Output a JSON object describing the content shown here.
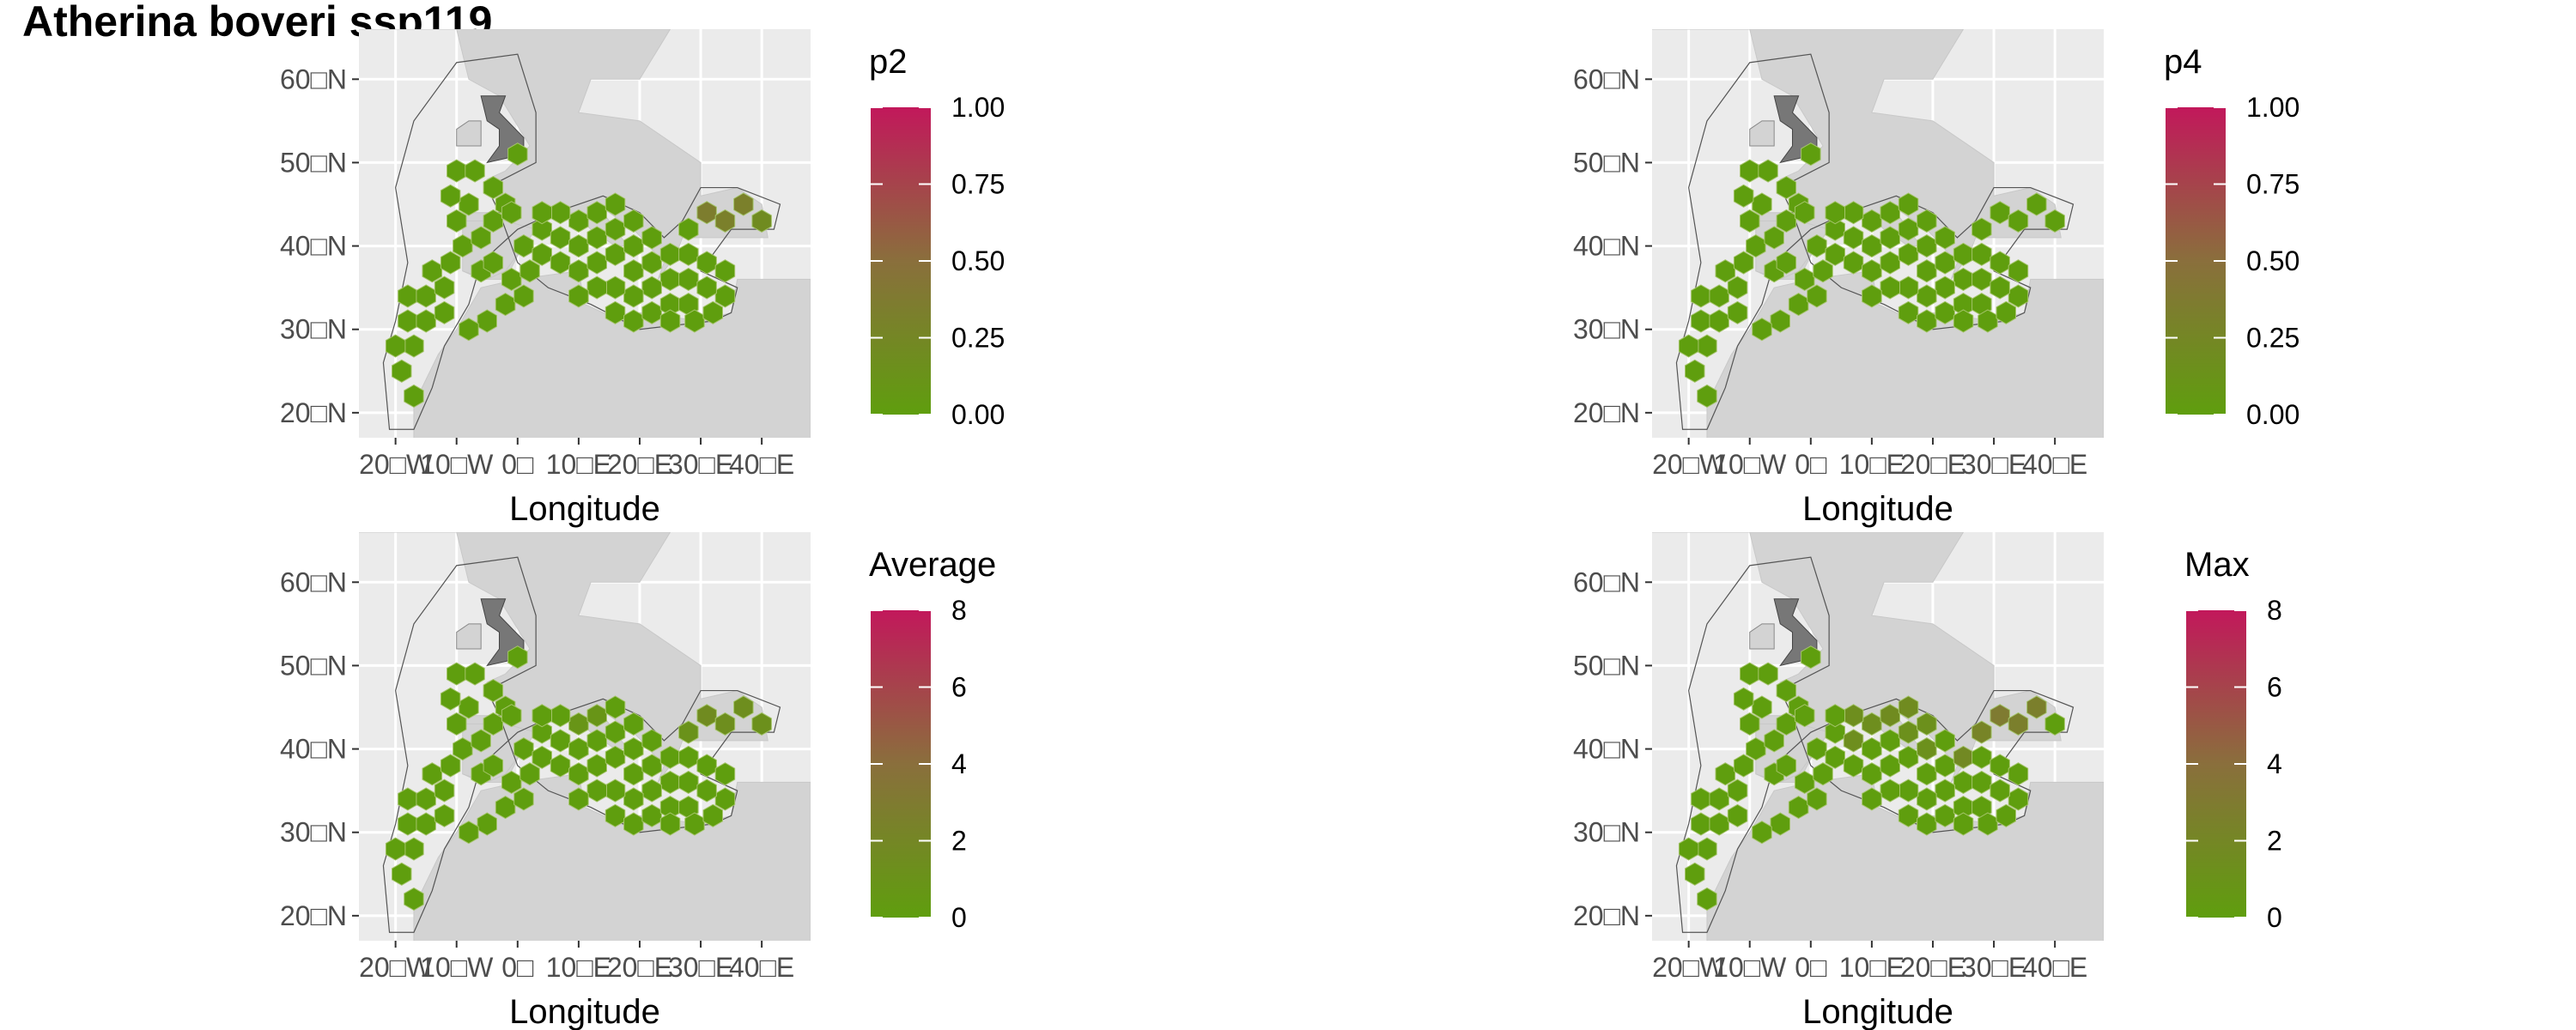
{
  "title": "Atherina boveri ssp119",
  "colors": {
    "low": "#5f9e0e",
    "mid": "#8a6f3c",
    "high": "#c2185b",
    "panel_bg": "#ebebeb",
    "land": "#d3d3d3",
    "grid": "#ffffff"
  },
  "map_axes": {
    "xlabel": "Longitude",
    "ylabel": "",
    "lat_ticks": [
      {
        "value": 60,
        "label": "60□N"
      },
      {
        "value": 50,
        "label": "50□N"
      },
      {
        "value": 40,
        "label": "40□N"
      },
      {
        "value": 30,
        "label": "30□N"
      },
      {
        "value": 20,
        "label": "20□N"
      }
    ],
    "lon_ticks": [
      {
        "value": -20,
        "label": "20□W"
      },
      {
        "value": -10,
        "label": "10□W"
      },
      {
        "value": 0,
        "label": "0□"
      },
      {
        "value": 10,
        "label": "10□E"
      },
      {
        "value": 20,
        "label": "20□E"
      },
      {
        "value": 30,
        "label": "30□E"
      },
      {
        "value": 40,
        "label": "40□E"
      }
    ],
    "xlim": [
      -26,
      48
    ],
    "ylim": [
      17,
      66
    ]
  },
  "chart_data": [
    {
      "type": "heatmap",
      "legend_title": "p2",
      "legend_ticks": [
        "1.00",
        "0.75",
        "0.50",
        "0.25",
        "0.00"
      ],
      "range": [
        0,
        1
      ],
      "hotspots": [
        {
          "lon": 31,
          "lat": 45,
          "value": 0.35
        },
        {
          "lon": 35,
          "lat": 45,
          "value": 0.32
        },
        {
          "lon": 42,
          "lat": 43,
          "value": 0.2
        }
      ]
    },
    {
      "type": "heatmap",
      "legend_title": "p4",
      "legend_ticks": [
        "1.00",
        "0.75",
        "0.50",
        "0.25",
        "0.00"
      ],
      "range": [
        0,
        1
      ],
      "hotspots": []
    },
    {
      "type": "heatmap",
      "legend_title": "Average",
      "legend_ticks": [
        "8",
        "6",
        "4",
        "2",
        "0"
      ],
      "range": [
        0,
        8
      ],
      "hotspots": [
        {
          "lon": 31,
          "lat": 45,
          "value": 1.6
        },
        {
          "lon": 35,
          "lat": 45,
          "value": 1.4
        },
        {
          "lon": 42,
          "lat": 43,
          "value": 1.2
        },
        {
          "lon": 28,
          "lat": 43,
          "value": 1.0
        },
        {
          "lon": 12,
          "lat": 45,
          "value": 0.8
        }
      ]
    },
    {
      "type": "heatmap",
      "legend_title": "Max",
      "legend_ticks": [
        "8",
        "6",
        "4",
        "2",
        "0"
      ],
      "range": [
        0,
        8
      ],
      "hotspots": [
        {
          "lon": 31,
          "lat": 45,
          "value": 3.0
        },
        {
          "lon": 35,
          "lat": 45,
          "value": 2.6
        },
        {
          "lon": 43,
          "lat": 43,
          "value": 3.2
        },
        {
          "lon": 28,
          "lat": 42,
          "value": 2.2
        },
        {
          "lon": 25,
          "lat": 41,
          "value": 1.8
        },
        {
          "lon": 14,
          "lat": 45,
          "value": 1.6
        },
        {
          "lon": 8,
          "lat": 43,
          "value": 1.4
        },
        {
          "lon": 18,
          "lat": 42,
          "value": 1.2
        }
      ]
    }
  ]
}
